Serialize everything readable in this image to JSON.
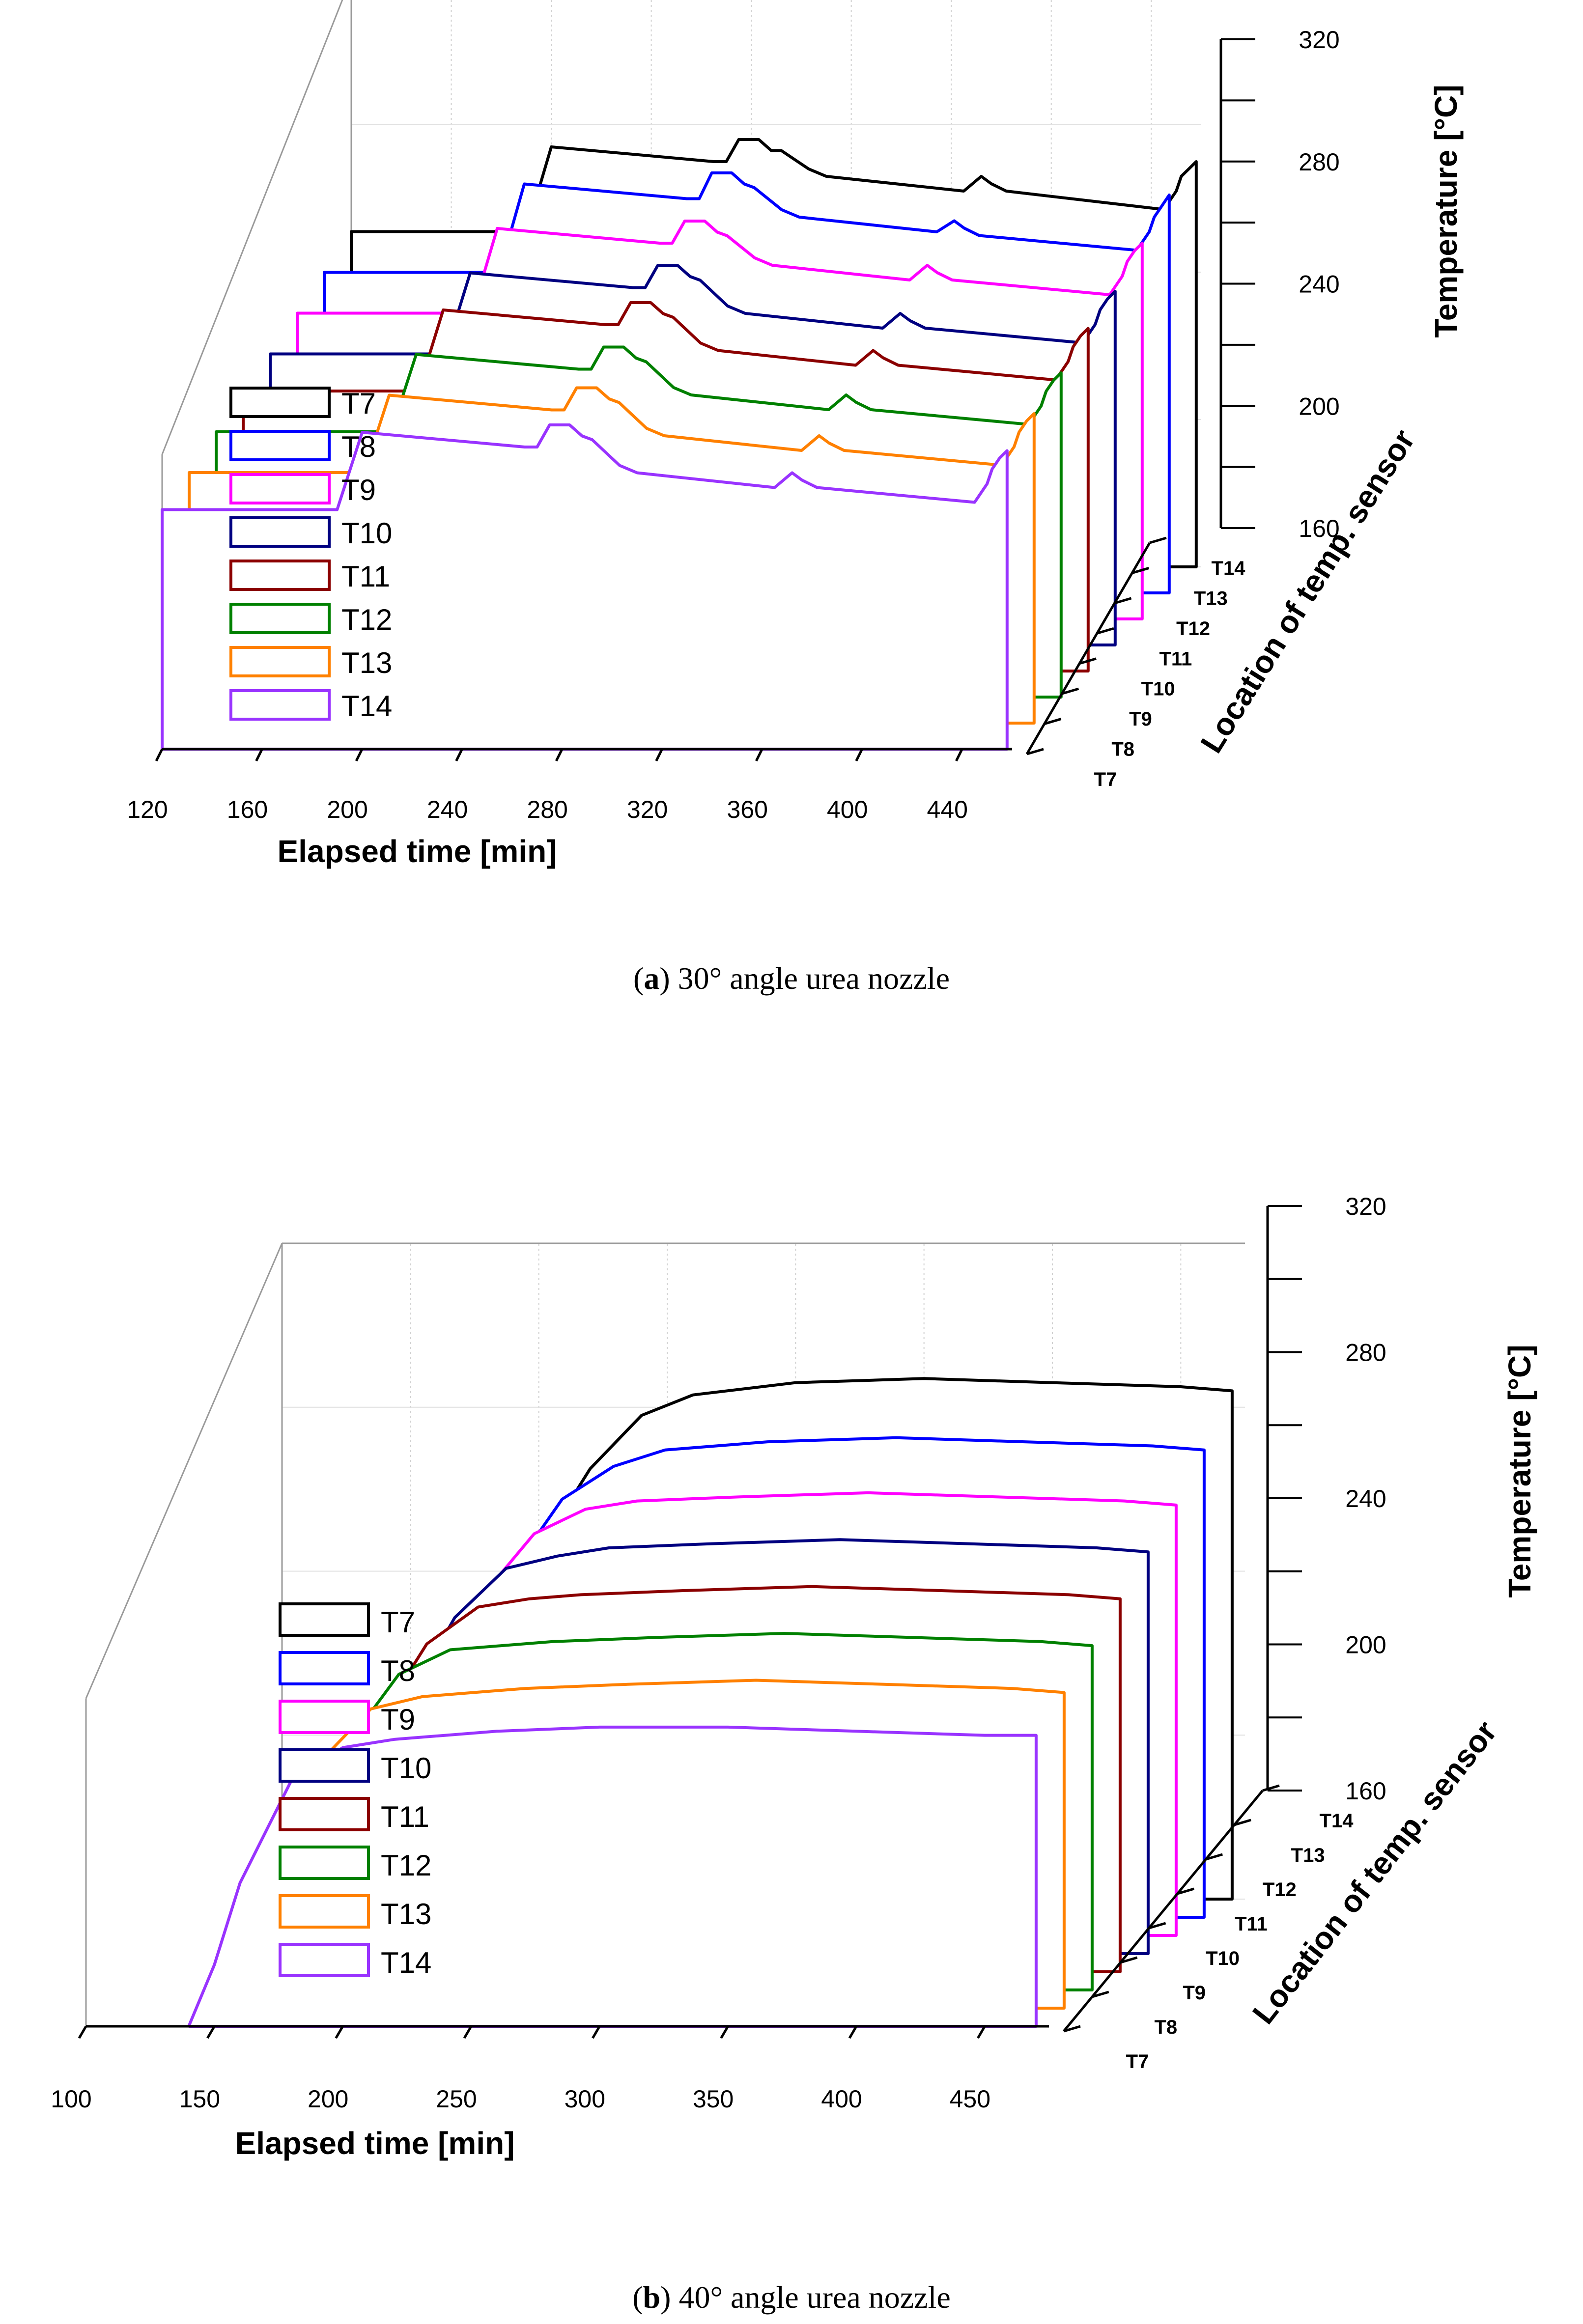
{
  "chart_data": [
    {
      "type": "line",
      "panel": "a",
      "caption_label": "a",
      "caption_text": "30° angle urea nozzle",
      "xlabel": "Elapsed time [min]",
      "ylabel": "Temperature [°C]",
      "zlabel": "Location of temp. sensor",
      "xlim": [
        120,
        460
      ],
      "ylim": [
        160,
        320
      ],
      "xticks": [
        120,
        160,
        200,
        240,
        280,
        320,
        360,
        400,
        440
      ],
      "yticks": [
        160,
        200,
        240,
        280,
        320
      ],
      "sensors": [
        "T7",
        "T8",
        "T9",
        "T10",
        "T11",
        "T12",
        "T13",
        "T14"
      ],
      "legend": [
        "T7",
        "T8",
        "T9",
        "T10",
        "T11",
        "T12",
        "T13",
        "T14"
      ],
      "series": [
        {
          "name": "T7",
          "color": "#000000",
          "t": [
            120,
            190,
            200,
            265,
            270,
            275,
            283,
            288,
            292,
            303,
            310,
            365,
            372,
            376,
            382,
            445,
            450,
            452,
            455,
            458
          ],
          "temp": [
            251,
            251,
            274,
            270,
            270,
            276,
            276,
            273,
            273,
            268,
            266,
            262,
            266,
            264,
            262,
            257,
            262,
            266,
            268,
            270
          ]
        },
        {
          "name": "T8",
          "color": "#0000ff",
          "t": [
            120,
            190,
            200,
            265,
            270,
            275,
            283,
            288,
            292,
            303,
            310,
            365,
            372,
            376,
            382,
            445,
            450,
            452,
            455,
            458
          ],
          "temp": [
            247,
            247,
            271,
            267,
            267,
            274,
            274,
            271,
            270,
            264,
            262,
            258,
            261,
            259,
            257,
            253,
            258,
            262,
            265,
            268
          ]
        },
        {
          "name": "T9",
          "color": "#ff00ff",
          "t": [
            120,
            190,
            200,
            265,
            270,
            275,
            283,
            288,
            292,
            303,
            310,
            365,
            372,
            376,
            382,
            445,
            450,
            452,
            455,
            458
          ],
          "temp": [
            243,
            243,
            266,
            262,
            262,
            268,
            268,
            265,
            264,
            258,
            256,
            252,
            256,
            254,
            252,
            248,
            253,
            257,
            260,
            262
          ]
        },
        {
          "name": "T10",
          "color": "#000080",
          "t": [
            120,
            190,
            200,
            265,
            270,
            275,
            283,
            288,
            292,
            303,
            310,
            365,
            372,
            376,
            382,
            445,
            450,
            452,
            455,
            458
          ],
          "temp": [
            239,
            239,
            261,
            257,
            257,
            263,
            263,
            260,
            259,
            252,
            250,
            246,
            250,
            248,
            246,
            242,
            247,
            251,
            254,
            256
          ]
        },
        {
          "name": "T11",
          "color": "#8b0000",
          "t": [
            120,
            190,
            200,
            265,
            270,
            275,
            283,
            288,
            292,
            303,
            310,
            365,
            372,
            376,
            382,
            445,
            450,
            452,
            455,
            458
          ],
          "temp": [
            236,
            236,
            258,
            254,
            254,
            260,
            260,
            257,
            256,
            249,
            247,
            243,
            247,
            245,
            243,
            239,
            244,
            248,
            251,
            253
          ]
        },
        {
          "name": "T12",
          "color": "#008000",
          "t": [
            120,
            190,
            200,
            265,
            270,
            275,
            283,
            288,
            292,
            303,
            310,
            365,
            372,
            376,
            382,
            445,
            450,
            452,
            455,
            458
          ],
          "temp": [
            232,
            232,
            253,
            249,
            249,
            255,
            255,
            252,
            251,
            244,
            242,
            238,
            242,
            240,
            238,
            234,
            239,
            243,
            246,
            248
          ]
        },
        {
          "name": "T13",
          "color": "#ff8000",
          "t": [
            120,
            190,
            200,
            265,
            270,
            275,
            283,
            288,
            292,
            303,
            310,
            365,
            372,
            376,
            382,
            445,
            450,
            452,
            455,
            458
          ],
          "temp": [
            228,
            228,
            249,
            245,
            245,
            251,
            251,
            248,
            247,
            240,
            238,
            234,
            238,
            236,
            234,
            230,
            235,
            239,
            242,
            244
          ]
        },
        {
          "name": "T14",
          "color": "#9933ff",
          "t": [
            120,
            190,
            200,
            265,
            270,
            275,
            283,
            288,
            292,
            303,
            310,
            365,
            372,
            376,
            382,
            445,
            450,
            452,
            455,
            458
          ],
          "temp": [
            225,
            225,
            246,
            242,
            242,
            248,
            248,
            245,
            244,
            237,
            235,
            231,
            235,
            233,
            231,
            227,
            232,
            236,
            239,
            241
          ]
        }
      ]
    },
    {
      "type": "line",
      "panel": "b",
      "caption_label": "b",
      "caption_text": "40° angle urea nozzle",
      "xlabel": "Elapsed time [min]",
      "ylabel": "Temperature [°C]",
      "zlabel": "Location of temp. sensor",
      "xlim": [
        100,
        475
      ],
      "ylim": [
        160,
        320
      ],
      "xticks": [
        100,
        150,
        200,
        250,
        300,
        350,
        400,
        450
      ],
      "yticks": [
        160,
        200,
        240,
        280,
        320
      ],
      "sensors": [
        "T7",
        "T8",
        "T9",
        "T10",
        "T11",
        "T12",
        "T13",
        "T14"
      ],
      "legend": [
        "T7",
        "T8",
        "T9",
        "T10",
        "T11",
        "T12",
        "T13",
        "T14"
      ],
      "series": [
        {
          "name": "T7",
          "color": "#000000",
          "t": [
            140,
            150,
            160,
            180,
            200,
            220,
            240,
            260,
            300,
            350,
            400,
            450,
            470
          ],
          "temp": [
            160,
            175,
            195,
            220,
            245,
            265,
            278,
            283,
            286,
            287,
            286,
            285,
            284
          ]
        },
        {
          "name": "T8",
          "color": "#0000ff",
          "t": [
            140,
            150,
            160,
            180,
            200,
            220,
            240,
            260,
            300,
            350,
            400,
            450,
            470
          ],
          "temp": [
            160,
            175,
            195,
            220,
            244,
            262,
            270,
            274,
            276,
            277,
            276,
            275,
            274
          ]
        },
        {
          "name": "T9",
          "color": "#ff00ff",
          "t": [
            140,
            150,
            160,
            180,
            200,
            220,
            240,
            260,
            300,
            350,
            400,
            450,
            470
          ],
          "temp": [
            160,
            175,
            195,
            220,
            243,
            258,
            264,
            266,
            267,
            268,
            267,
            266,
            265
          ]
        },
        {
          "name": "T10",
          "color": "#000080",
          "t": [
            140,
            150,
            160,
            180,
            200,
            220,
            240,
            260,
            300,
            350,
            400,
            450,
            470
          ],
          "temp": [
            160,
            175,
            195,
            220,
            242,
            254,
            257,
            259,
            260,
            261,
            260,
            259,
            258
          ]
        },
        {
          "name": "T11",
          "color": "#8b0000",
          "t": [
            140,
            150,
            160,
            180,
            200,
            220,
            240,
            260,
            300,
            350,
            400,
            450,
            470
          ],
          "temp": [
            160,
            175,
            195,
            220,
            240,
            249,
            251,
            252,
            253,
            254,
            253,
            252,
            251
          ]
        },
        {
          "name": "T12",
          "color": "#008000",
          "t": [
            140,
            150,
            160,
            180,
            200,
            220,
            240,
            260,
            300,
            350,
            400,
            450,
            470
          ],
          "temp": [
            160,
            175,
            195,
            220,
            237,
            243,
            244,
            245,
            246,
            247,
            246,
            245,
            244
          ]
        },
        {
          "name": "T13",
          "color": "#ff8000",
          "t": [
            140,
            150,
            160,
            180,
            200,
            220,
            240,
            260,
            300,
            350,
            400,
            450,
            470
          ],
          "temp": [
            160,
            175,
            195,
            220,
            233,
            236,
            237,
            238,
            239,
            240,
            239,
            238,
            237
          ]
        },
        {
          "name": "T14",
          "color": "#9933ff",
          "t": [
            140,
            150,
            160,
            180,
            200,
            220,
            240,
            260,
            300,
            350,
            400,
            450,
            470
          ],
          "temp": [
            160,
            175,
            195,
            220,
            228,
            230,
            231,
            232,
            233,
            233,
            232,
            231,
            231
          ]
        }
      ]
    }
  ]
}
